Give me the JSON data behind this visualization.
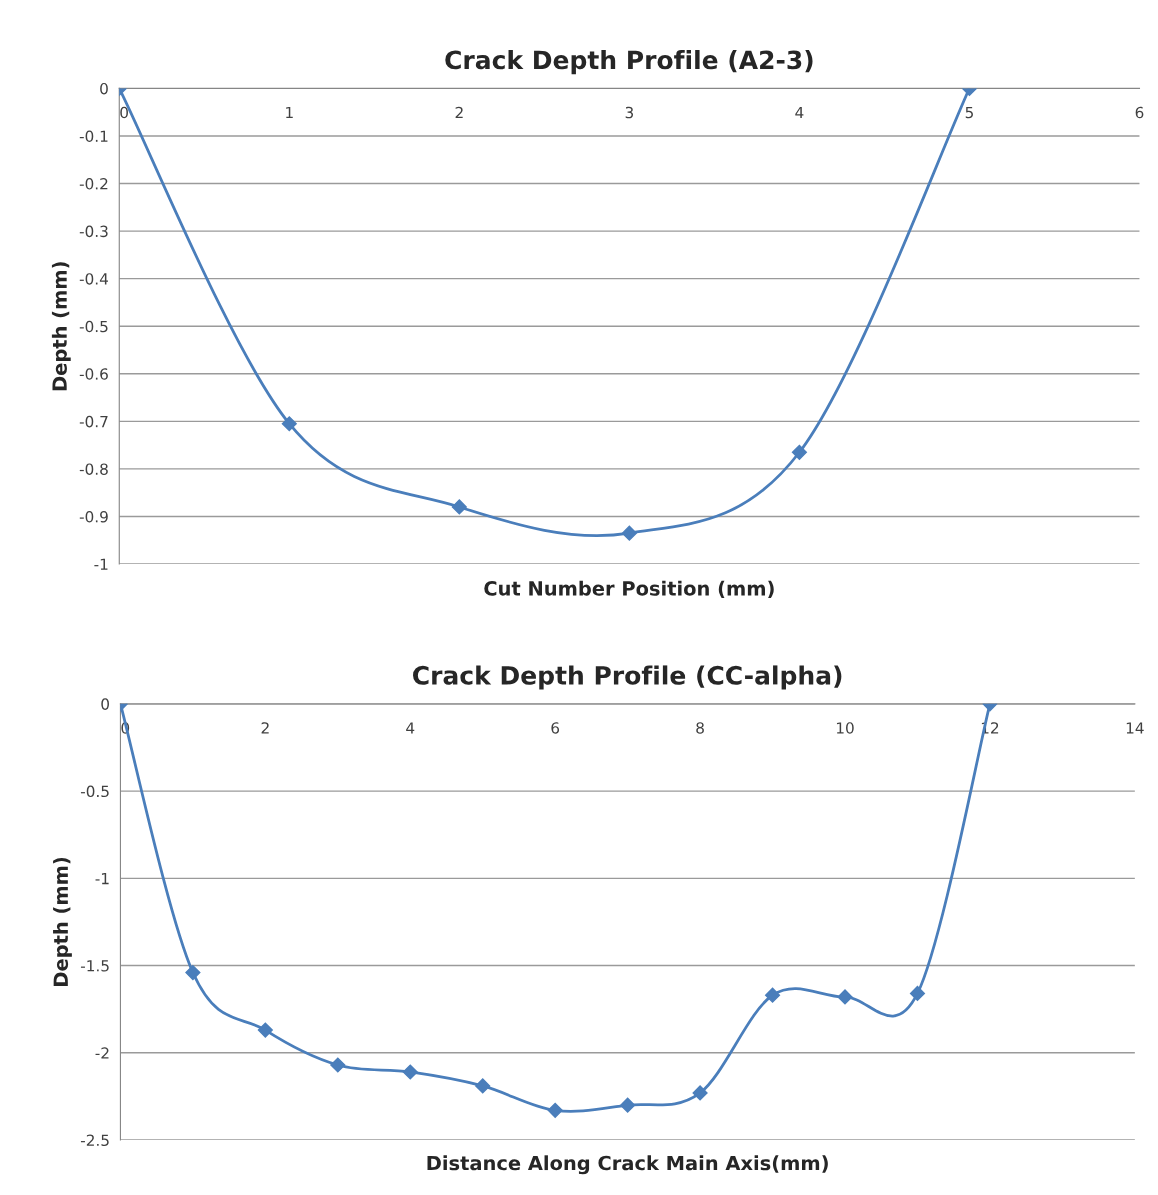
{
  "chart_data": [
    {
      "type": "line",
      "title": "Crack Depth Profile (A2-3)",
      "xlabel": "Cut Number Position (mm)",
      "ylabel": "Depth (mm)",
      "xlim": [
        0,
        6
      ],
      "xticks": [
        0,
        1,
        2,
        3,
        4,
        5,
        6
      ],
      "ylim": [
        -1,
        0
      ],
      "yticks": [
        0,
        -0.1,
        -0.2,
        -0.3,
        -0.4,
        -0.5,
        -0.6,
        -0.7,
        -0.8,
        -0.9,
        -1
      ],
      "grid": "y",
      "marker": "diamond",
      "line_style": "solid",
      "legend": false,
      "series": [
        {
          "color": "#4a7ebb",
          "x": [
            0,
            1,
            2,
            3,
            4,
            5
          ],
          "values": [
            0,
            -0.705,
            -0.88,
            -0.935,
            -0.765,
            0
          ]
        }
      ]
    },
    {
      "type": "line",
      "title": "Crack Depth Profile (CC-alpha)",
      "xlabel": "Distance Along Crack Main Axis(mm)",
      "ylabel": "Depth (mm)",
      "xlim": [
        0,
        14
      ],
      "xticks": [
        0,
        2,
        4,
        6,
        8,
        10,
        12,
        14
      ],
      "ylim": [
        -2.5,
        0
      ],
      "yticks": [
        0,
        -0.5,
        -1,
        -1.5,
        -2,
        -2.5
      ],
      "grid": "y",
      "marker": "diamond",
      "line_style": "solid",
      "legend": false,
      "series": [
        {
          "color": "#4a7ebb",
          "x": [
            0,
            1,
            2,
            3,
            4,
            5,
            6,
            7,
            8,
            9,
            10,
            11,
            12
          ],
          "values": [
            0,
            -1.54,
            -1.87,
            -2.07,
            -2.11,
            -2.19,
            -2.33,
            -2.3,
            -2.23,
            -1.67,
            -1.68,
            -1.66,
            0
          ]
        }
      ]
    }
  ]
}
